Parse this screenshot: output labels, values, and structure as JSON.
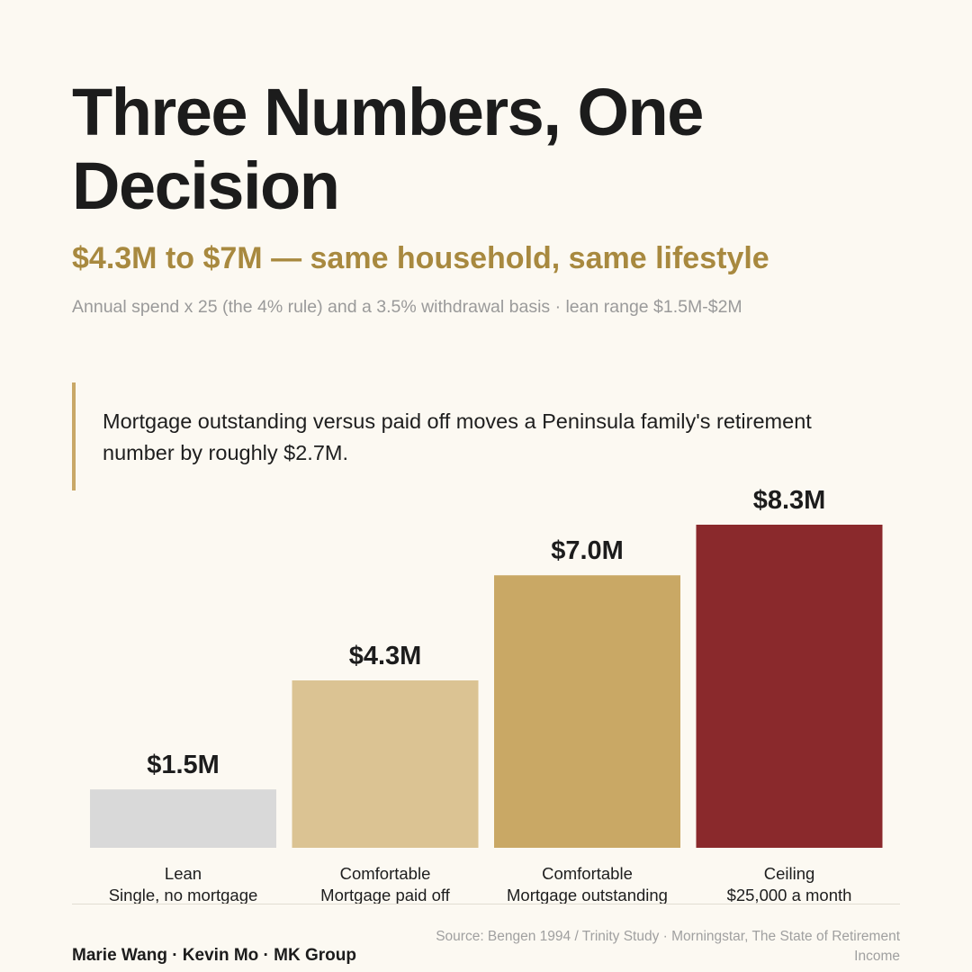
{
  "header": {
    "title": "Three Numbers, One Decision",
    "subtitle": "$4.3M to $7M — same household, same lifestyle",
    "note": "Annual spend x 25 (the 4% rule) and a 3.5% withdrawal basis · lean range $1.5M-$2M"
  },
  "callout": {
    "text": "Mortgage outstanding versus paid off moves a Peninsula family's retirement number by roughly $2.7M."
  },
  "chart_data": {
    "type": "bar",
    "categories": [
      [
        "Lean",
        "Single, no mortgage"
      ],
      [
        "Comfortable",
        "Mortgage paid off"
      ],
      [
        "Comfortable",
        "Mortgage outstanding"
      ],
      [
        "Ceiling",
        "$25,000 a month"
      ]
    ],
    "values": [
      1.5,
      4.3,
      7.0,
      8.3
    ],
    "value_labels": [
      "$1.5M",
      "$4.3M",
      "$7.0M",
      "$8.3M"
    ],
    "colors": [
      "#d9d9d9",
      "#dbc393",
      "#c9a865",
      "#8a292c"
    ],
    "unit": "$M",
    "ylim": [
      0,
      8.3
    ],
    "grid": false,
    "legend": "none"
  },
  "footer": {
    "source": "Source: Bengen 1994 / Trinity Study · Morningstar, The State of Retirement Income",
    "credit": "Marie Wang · Kevin Mo · MK Group"
  }
}
